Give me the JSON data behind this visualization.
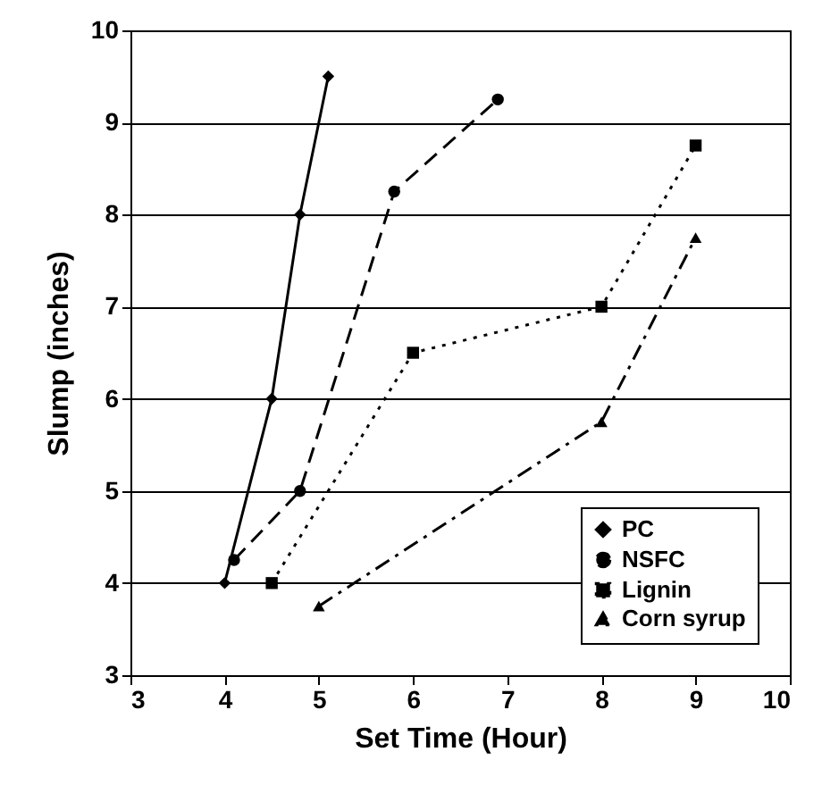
{
  "chart_data": {
    "type": "line",
    "xlabel": "Set Time (Hour)",
    "ylabel": "Slump (inches)",
    "xlim": [
      3,
      10
    ],
    "xticks": [
      3,
      4,
      5,
      6,
      7,
      8,
      9,
      10
    ],
    "ylim": [
      3,
      10
    ],
    "yticks": [
      3,
      4,
      5,
      6,
      7,
      8,
      9,
      10
    ],
    "grid": "y",
    "legend": "bottom right",
    "series": [
      {
        "name": "PC",
        "color": "#000000",
        "marker": "diamond",
        "line_style": "solid",
        "x": [
          4,
          4.5,
          4.8,
          5.1
        ],
        "values": [
          4,
          6,
          8,
          9.5
        ]
      },
      {
        "name": "NSFC",
        "color": "#000000",
        "marker": "circle",
        "line_style": "dashed",
        "x": [
          4.1,
          4.8,
          5.8,
          6.9
        ],
        "values": [
          4.25,
          5,
          8.25,
          9.25
        ]
      },
      {
        "name": "Lignin",
        "color": "#000000",
        "marker": "square",
        "line_style": "dotted",
        "x": [
          4.5,
          6,
          8,
          9
        ],
        "values": [
          4,
          6.5,
          7,
          8.75
        ]
      },
      {
        "name": "Corn syrup",
        "color": "#000000",
        "marker": "triangle",
        "line_style": "dashdot",
        "x": [
          5,
          8,
          9
        ],
        "values": [
          3.75,
          5.75,
          7.75
        ]
      }
    ]
  }
}
